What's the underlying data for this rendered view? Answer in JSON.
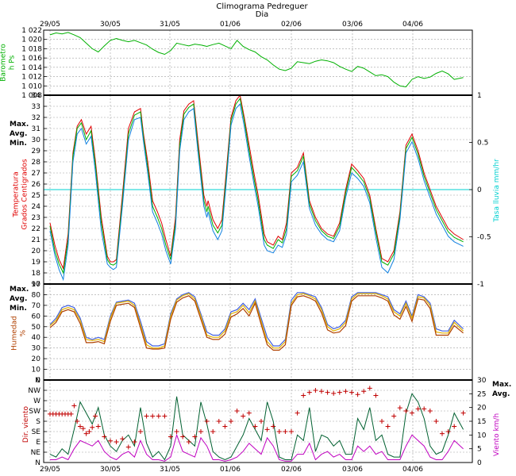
{
  "header": {
    "title": "Climograma Pedreguer",
    "xlabel": "Dia"
  },
  "days": [
    "29/05",
    "30/05",
    "31/05",
    "01/06",
    "02/06",
    "03/06",
    "04/06"
  ],
  "colors": {
    "barometer": "#00b000",
    "tmax": "#e00000",
    "tavg": "#00b000",
    "tmin": "#1080e0",
    "rain": "#00d0d0",
    "hmax": "#4060e0",
    "havg": "#e0b000",
    "hmin": "#b04000",
    "dir": "#c00000",
    "wmax": "#006030",
    "wavg": "#c000c0"
  },
  "chart_data": [
    {
      "type": "line",
      "name": "barometer",
      "ylabel": "Barometro\nh Ps",
      "x": [
        0,
        0.1,
        0.2,
        0.3,
        0.4,
        0.5,
        0.6,
        0.7,
        0.8,
        0.9,
        1.0,
        1.1,
        1.2,
        1.3,
        1.4,
        1.5,
        1.6,
        1.7,
        1.8,
        1.9,
        2.0,
        2.1,
        2.2,
        2.3,
        2.4,
        2.5,
        2.6,
        2.7,
        2.8,
        2.9,
        3.0,
        3.1,
        3.2,
        3.3,
        3.4,
        3.5,
        3.6,
        3.7,
        3.8,
        3.9,
        4.0,
        4.1,
        4.2,
        4.3,
        4.4,
        4.5,
        4.6,
        4.7,
        4.8,
        4.9,
        5.0,
        5.1,
        5.2,
        5.3,
        5.4,
        5.5,
        5.6,
        5.7,
        5.8,
        5.9,
        6.0,
        6.1,
        6.2,
        6.3,
        6.4,
        6.5,
        6.6,
        6.7,
        6.85
      ],
      "values": [
        1021.0,
        1021.4,
        1021.2,
        1021.5,
        1021.0,
        1020.4,
        1019.2,
        1018.0,
        1017.3,
        1018.6,
        1019.8,
        1020.2,
        1019.8,
        1019.5,
        1019.8,
        1019.3,
        1018.8,
        1017.9,
        1017.2,
        1016.8,
        1017.6,
        1019.2,
        1018.9,
        1018.6,
        1019.0,
        1018.8,
        1018.5,
        1018.9,
        1019.2,
        1018.6,
        1018.0,
        1019.8,
        1018.5,
        1017.8,
        1017.3,
        1016.3,
        1015.6,
        1014.5,
        1013.6,
        1013.3,
        1013.8,
        1015.2,
        1015.0,
        1014.8,
        1015.3,
        1015.6,
        1015.4,
        1015.0,
        1014.2,
        1013.6,
        1013.1,
        1014.2,
        1013.8,
        1013.0,
        1012.2,
        1012.4,
        1012.0,
        1010.8,
        1010.0,
        1009.8,
        1011.4,
        1012.0,
        1011.6,
        1011.9,
        1012.7,
        1013.2,
        1012.6,
        1011.4,
        1011.8
      ],
      "ylim": [
        1008,
        1022
      ],
      "yticks": [
        "1 008",
        "1 010",
        "1 012",
        "1 014",
        "1 016",
        "1 018",
        "1 020",
        "1 022"
      ]
    },
    {
      "type": "line",
      "name": "temperature",
      "ylabel": "Temperatura\nGrados Centigrados",
      "y2label": "Tasa lluvia mm/hr",
      "legend": [
        "Max.",
        "Avg.",
        "Min."
      ],
      "ylim": [
        17,
        34
      ],
      "y2lim": [
        -1,
        1
      ],
      "y2ticks": [
        "-1",
        "-0.5",
        "0",
        "0.5",
        "1"
      ],
      "rain_rate": 0,
      "x": [
        0,
        0.08,
        0.15,
        0.22,
        0.3,
        0.38,
        0.45,
        0.52,
        0.6,
        0.68,
        0.75,
        0.85,
        0.95,
        1.0,
        1.05,
        1.1,
        1.2,
        1.3,
        1.4,
        1.5,
        1.55,
        1.62,
        1.7,
        1.78,
        1.85,
        1.92,
        2.0,
        2.08,
        2.15,
        2.22,
        2.3,
        2.38,
        2.45,
        2.55,
        2.6,
        2.62,
        2.7,
        2.78,
        2.85,
        2.92,
        3.0,
        3.08,
        3.15,
        3.22,
        3.3,
        3.38,
        3.45,
        3.55,
        3.6,
        3.7,
        3.78,
        3.85,
        3.92,
        4.0,
        4.1,
        4.2,
        4.3,
        4.4,
        4.5,
        4.6,
        4.7,
        4.8,
        4.9,
        5.0,
        5.1,
        5.2,
        5.3,
        5.4,
        5.5,
        5.6,
        5.7,
        5.8,
        5.9,
        6.0,
        6.1,
        6.2,
        6.3,
        6.4,
        6.5,
        6.6,
        6.7,
        6.85
      ],
      "series": [
        {
          "name": "Max.",
          "values": [
            22.5,
            20.5,
            19.2,
            18.4,
            21.5,
            28.8,
            31.2,
            31.8,
            30.5,
            31.2,
            28.2,
            23.0,
            19.5,
            19.0,
            19.0,
            19.2,
            25.0,
            31.0,
            32.5,
            32.8,
            30.5,
            28.0,
            24.5,
            23.5,
            22.5,
            21.0,
            19.5,
            23.0,
            30.0,
            32.6,
            33.2,
            33.5,
            30.0,
            25.0,
            24.0,
            24.5,
            22.8,
            22.0,
            22.8,
            27.0,
            32.0,
            33.5,
            34.0,
            32.0,
            29.5,
            27.0,
            25.0,
            21.5,
            20.8,
            20.5,
            21.3,
            21.0,
            22.5,
            27.0,
            27.5,
            28.8,
            24.5,
            23.0,
            22.0,
            21.5,
            21.3,
            22.5,
            25.5,
            27.8,
            27.2,
            26.5,
            25.0,
            22.0,
            19.3,
            19.0,
            20.0,
            23.5,
            29.5,
            30.5,
            29.0,
            27.0,
            25.5,
            24.0,
            23.0,
            22.0,
            21.5,
            21.0
          ]
        },
        {
          "name": "Avg.",
          "values": [
            22.2,
            20.0,
            18.8,
            18.0,
            21.0,
            28.5,
            31.0,
            31.5,
            30.0,
            30.8,
            27.8,
            22.5,
            19.2,
            18.8,
            18.7,
            18.9,
            24.5,
            30.5,
            32.2,
            32.5,
            30.2,
            27.5,
            24.0,
            23.0,
            22.0,
            20.5,
            19.2,
            22.5,
            29.5,
            32.3,
            32.9,
            33.2,
            29.5,
            24.5,
            23.5,
            24.0,
            22.3,
            21.6,
            22.3,
            26.5,
            31.7,
            33.2,
            33.7,
            31.7,
            29.0,
            26.5,
            24.5,
            21.0,
            20.5,
            20.2,
            21.0,
            20.7,
            22.0,
            26.7,
            27.2,
            28.5,
            24.2,
            22.7,
            21.8,
            21.3,
            21.1,
            22.2,
            25.2,
            27.5,
            26.9,
            26.2,
            24.7,
            21.7,
            19.0,
            18.7,
            19.7,
            23.2,
            29.2,
            30.2,
            28.7,
            26.7,
            25.2,
            23.7,
            22.7,
            21.7,
            21.2,
            20.8
          ]
        },
        {
          "name": "Min.",
          "values": [
            21.8,
            19.6,
            18.3,
            17.4,
            20.5,
            28.0,
            30.5,
            31.0,
            29.6,
            30.3,
            27.2,
            21.8,
            18.8,
            18.5,
            18.3,
            18.5,
            24.0,
            30.0,
            31.8,
            32.0,
            29.8,
            27.0,
            23.5,
            22.5,
            21.5,
            20.0,
            18.8,
            22.0,
            29.0,
            31.8,
            32.5,
            32.8,
            29.0,
            24.0,
            23.0,
            23.5,
            21.8,
            21.0,
            21.8,
            26.0,
            31.3,
            32.8,
            33.2,
            31.2,
            28.5,
            26.0,
            24.0,
            20.5,
            20.0,
            19.8,
            20.5,
            20.3,
            21.5,
            26.2,
            26.8,
            28.0,
            23.8,
            22.3,
            21.5,
            21.0,
            20.8,
            21.8,
            24.8,
            27.0,
            26.5,
            25.8,
            24.3,
            21.2,
            18.5,
            18.0,
            19.2,
            22.8,
            28.8,
            29.8,
            28.3,
            26.3,
            24.8,
            23.3,
            22.3,
            21.3,
            20.8,
            20.4
          ]
        }
      ]
    },
    {
      "type": "line",
      "name": "humidity",
      "ylabel": "Humedad\n%",
      "legend": [
        "Max.",
        "Avg.",
        "Min."
      ],
      "ylim": [
        0,
        90
      ],
      "x": [
        0,
        0.1,
        0.2,
        0.3,
        0.4,
        0.5,
        0.6,
        0.7,
        0.8,
        0.9,
        1.0,
        1.1,
        1.2,
        1.3,
        1.4,
        1.5,
        1.6,
        1.7,
        1.8,
        1.9,
        2.0,
        2.1,
        2.2,
        2.3,
        2.4,
        2.5,
        2.6,
        2.7,
        2.8,
        2.9,
        3.0,
        3.1,
        3.2,
        3.3,
        3.4,
        3.5,
        3.6,
        3.7,
        3.8,
        3.9,
        4.0,
        4.1,
        4.2,
        4.3,
        4.4,
        4.5,
        4.6,
        4.7,
        4.8,
        4.9,
        5.0,
        5.1,
        5.2,
        5.3,
        5.4,
        5.5,
        5.6,
        5.7,
        5.8,
        5.9,
        6.0,
        6.1,
        6.2,
        6.3,
        6.4,
        6.5,
        6.6,
        6.7,
        6.85
      ],
      "series": [
        {
          "name": "Max.",
          "values": [
            52,
            58,
            68,
            70,
            68,
            58,
            40,
            38,
            40,
            38,
            60,
            73,
            74,
            75,
            72,
            55,
            36,
            32,
            32,
            34,
            62,
            76,
            80,
            82,
            78,
            62,
            45,
            42,
            42,
            48,
            64,
            66,
            72,
            66,
            76,
            58,
            40,
            32,
            32,
            38,
            75,
            82,
            82,
            80,
            78,
            68,
            52,
            48,
            50,
            56,
            78,
            82,
            82,
            82,
            82,
            80,
            78,
            66,
            62,
            74,
            60,
            80,
            78,
            72,
            48,
            46,
            46,
            56,
            48
          ]
        },
        {
          "name": "Avg.",
          "values": [
            51,
            56,
            66,
            68,
            66,
            56,
            38,
            37,
            38,
            36,
            58,
            72,
            73,
            74,
            70,
            52,
            33,
            30,
            30,
            32,
            60,
            75,
            79,
            81,
            76,
            60,
            42,
            40,
            40,
            46,
            62,
            64,
            70,
            63,
            74,
            55,
            36,
            30,
            30,
            36,
            72,
            80,
            81,
            79,
            76,
            66,
            50,
            46,
            48,
            54,
            76,
            81,
            81,
            81,
            81,
            79,
            76,
            64,
            60,
            72,
            58,
            78,
            77,
            70,
            45,
            44,
            44,
            54,
            46
          ]
        },
        {
          "name": "Min.",
          "values": [
            49,
            54,
            64,
            66,
            64,
            53,
            35,
            35,
            36,
            34,
            55,
            70,
            71,
            72,
            68,
            49,
            30,
            29,
            29,
            30,
            57,
            73,
            77,
            79,
            74,
            57,
            40,
            38,
            38,
            43,
            59,
            62,
            67,
            60,
            72,
            52,
            33,
            28,
            28,
            33,
            70,
            78,
            79,
            77,
            74,
            63,
            47,
            44,
            45,
            51,
            74,
            79,
            79,
            79,
            79,
            77,
            74,
            61,
            57,
            69,
            55,
            76,
            75,
            67,
            42,
            42,
            42,
            51,
            44
          ]
        }
      ]
    },
    {
      "type": "scatter",
      "name": "wind",
      "ylabel": "Dir. viento",
      "y2label": "Viento km/h",
      "legend": [
        "Max.",
        "Avg."
      ],
      "directions": [
        "N",
        "NE",
        "E",
        "SE",
        "S",
        "SW",
        "W",
        "NW",
        "N"
      ],
      "y2lim": [
        0,
        30
      ],
      "y2ticks": [
        "0",
        "5",
        "10",
        "15",
        "20",
        "25",
        "30"
      ],
      "dir_x": [
        0,
        0.05,
        0.1,
        0.15,
        0.2,
        0.25,
        0.3,
        0.35,
        0.4,
        0.45,
        0.5,
        0.55,
        0.6,
        0.65,
        0.7,
        0.75,
        0.8,
        0.9,
        1.0,
        1.1,
        1.2,
        1.3,
        1.4,
        1.5,
        1.6,
        1.7,
        1.8,
        1.9,
        2.0,
        2.1,
        2.2,
        2.3,
        2.4,
        2.5,
        2.6,
        2.7,
        2.8,
        2.9,
        3.0,
        3.1,
        3.2,
        3.3,
        3.4,
        3.5,
        3.6,
        3.7,
        3.8,
        3.9,
        4.0,
        4.1,
        4.2,
        4.3,
        4.4,
        4.5,
        4.6,
        4.7,
        4.8,
        4.9,
        5.0,
        5.1,
        5.2,
        5.3,
        5.4,
        5.5,
        5.6,
        5.7,
        5.8,
        5.9,
        6.0,
        6.1,
        6.2,
        6.3,
        6.4,
        6.5,
        6.6,
        6.7,
        6.85
      ],
      "dir_values": [
        4.7,
        4.7,
        4.7,
        4.7,
        4.7,
        4.7,
        4.7,
        4.7,
        5.5,
        4.0,
        3.5,
        3.3,
        2.8,
        3.0,
        3.4,
        4.5,
        3.5,
        2.5,
        2.1,
        2.0,
        2.3,
        1.5,
        2.0,
        3.0,
        4.5,
        4.5,
        4.5,
        4.5,
        2.5,
        3.0,
        2.5,
        2.0,
        2.5,
        3.0,
        4.0,
        3.0,
        4.0,
        3.5,
        4.0,
        5.0,
        4.5,
        4.8,
        3.5,
        4.0,
        3.2,
        3.5,
        3.0,
        3.0,
        3.0,
        4.8,
        6.5,
        6.8,
        7.0,
        6.9,
        6.8,
        6.7,
        6.8,
        6.9,
        6.8,
        6.6,
        6.9,
        7.2,
        6.5,
        4.0,
        3.5,
        4.5,
        5.3,
        5.0,
        4.8,
        5.2,
        5.2,
        5.0,
        4.0,
        2.8,
        3.0,
        3.5,
        4.8
      ],
      "x": [
        0,
        0.1,
        0.2,
        0.3,
        0.4,
        0.5,
        0.6,
        0.7,
        0.8,
        0.9,
        1.0,
        1.1,
        1.2,
        1.3,
        1.4,
        1.5,
        1.6,
        1.7,
        1.8,
        1.9,
        2.0,
        2.1,
        2.2,
        2.3,
        2.4,
        2.5,
        2.6,
        2.7,
        2.8,
        2.9,
        3.0,
        3.1,
        3.2,
        3.3,
        3.4,
        3.5,
        3.6,
        3.7,
        3.8,
        3.9,
        4.0,
        4.1,
        4.2,
        4.3,
        4.4,
        4.5,
        4.6,
        4.7,
        4.8,
        4.9,
        5.0,
        5.1,
        5.2,
        5.3,
        5.4,
        5.5,
        5.6,
        5.7,
        5.8,
        5.9,
        6.0,
        6.1,
        6.2,
        6.3,
        6.4,
        6.5,
        6.6,
        6.7,
        6.85
      ],
      "series": [
        {
          "name": "Max.",
          "values": [
            3,
            2,
            5,
            3,
            12,
            22,
            18,
            14,
            20,
            10,
            6,
            4,
            8,
            10,
            6,
            20,
            7,
            2,
            4,
            1,
            6,
            24,
            10,
            8,
            6,
            22,
            14,
            4,
            2,
            1,
            2,
            6,
            10,
            16,
            12,
            8,
            22,
            15,
            2,
            1,
            1,
            10,
            8,
            20,
            4,
            10,
            9,
            6,
            8,
            3,
            3,
            16,
            12,
            20,
            8,
            10,
            3,
            2,
            2,
            18,
            25,
            22,
            16,
            6,
            3,
            4,
            10,
            18,
            12
          ]
        },
        {
          "name": "Avg.",
          "values": [
            1,
            1,
            2,
            1,
            5,
            8,
            7,
            6,
            8,
            4,
            2,
            1,
            3,
            4,
            2,
            8,
            3,
            1,
            1,
            0.5,
            2,
            10,
            4,
            3,
            2,
            9,
            6,
            1,
            1,
            0.5,
            1,
            2,
            4,
            7,
            5,
            3,
            9,
            6,
            1,
            0.5,
            0.5,
            3,
            3,
            7,
            1,
            3,
            4,
            2,
            3,
            1,
            1,
            6,
            4,
            6,
            3,
            4,
            1,
            1,
            1,
            6,
            10,
            8,
            6,
            2,
            1,
            1,
            4,
            8,
            5
          ]
        }
      ]
    }
  ]
}
